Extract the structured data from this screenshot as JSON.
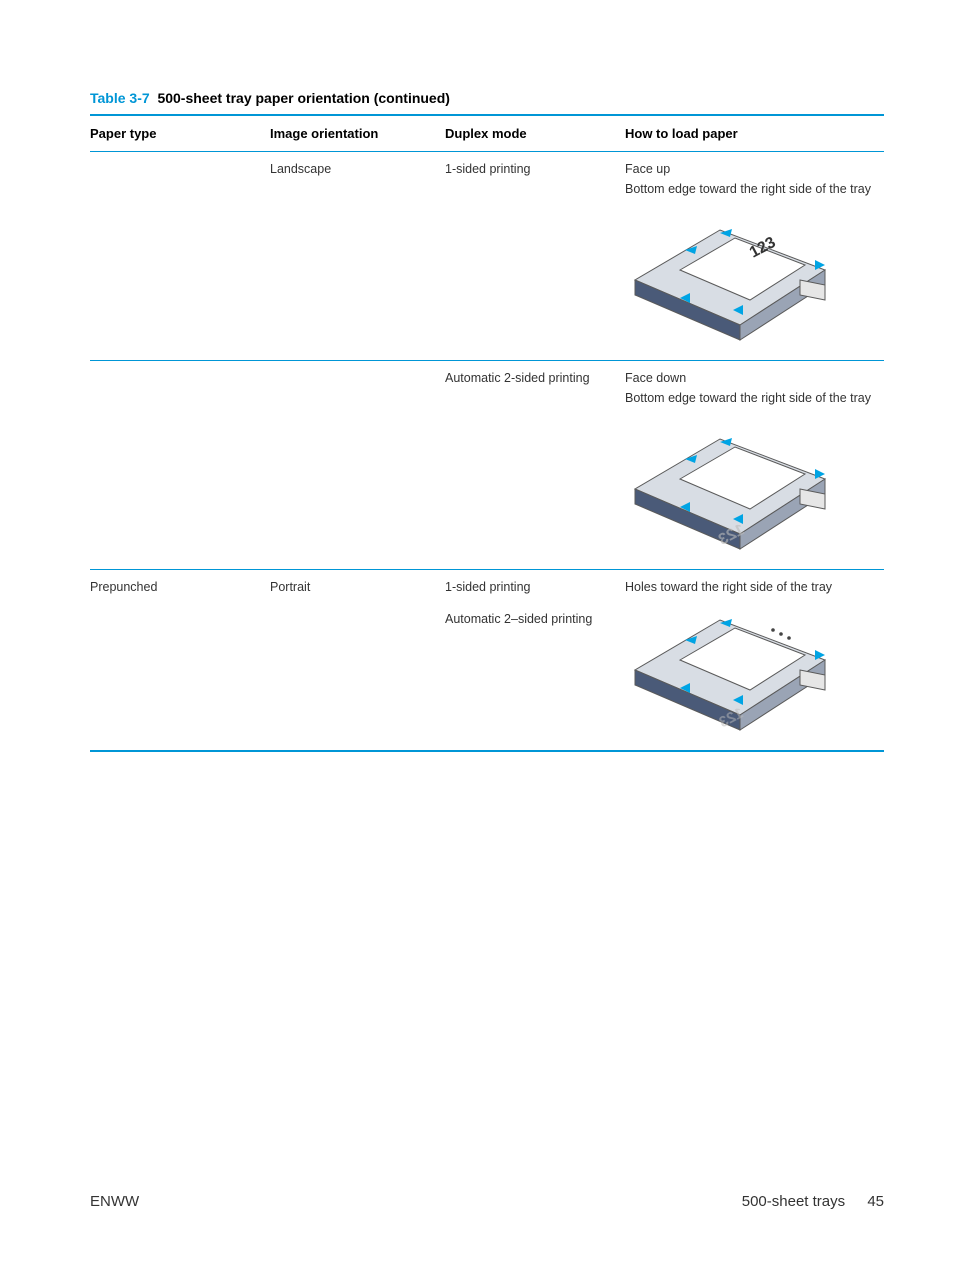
{
  "caption": {
    "number": "Table 3-7",
    "title": "500-sheet tray paper orientation (continued)"
  },
  "headers": [
    "Paper type",
    "Image orientation",
    "Duplex mode",
    "How to load paper"
  ],
  "rows": [
    {
      "paper_type": "",
      "image_orientation": "Landscape",
      "duplex_mode": "1-sided printing",
      "load_title": "Face up",
      "load_desc": "Bottom edge toward the right side of the tray",
      "illustration": "tray_faceup_123",
      "sep_after": true
    },
    {
      "paper_type": "",
      "image_orientation": "",
      "duplex_mode": "Automatic 2-sided printing",
      "load_title": "Face down",
      "load_desc": "Bottom edge toward the right side of the tray",
      "illustration": "tray_facedown_123",
      "sep_after": true
    },
    {
      "paper_type": "Prepunched",
      "image_orientation": "Portrait",
      "duplex_mode": "1-sided printing",
      "duplex_mode_2": "Automatic 2–sided printing",
      "load_title": "Holes toward the right side of the tray",
      "load_desc": "",
      "illustration": "tray_holes",
      "sep_after": false
    }
  ],
  "footer": {
    "left": "ENWW",
    "right_label": "500-sheet trays",
    "page": "45"
  },
  "colors": {
    "accent": "#0096d6",
    "text": "#333333",
    "arrow": "#00a4e4",
    "tray_dark": "#4a5a78",
    "tray_light": "#d8dde4",
    "paper": "#ffffff",
    "outline": "#5a5a5a"
  }
}
